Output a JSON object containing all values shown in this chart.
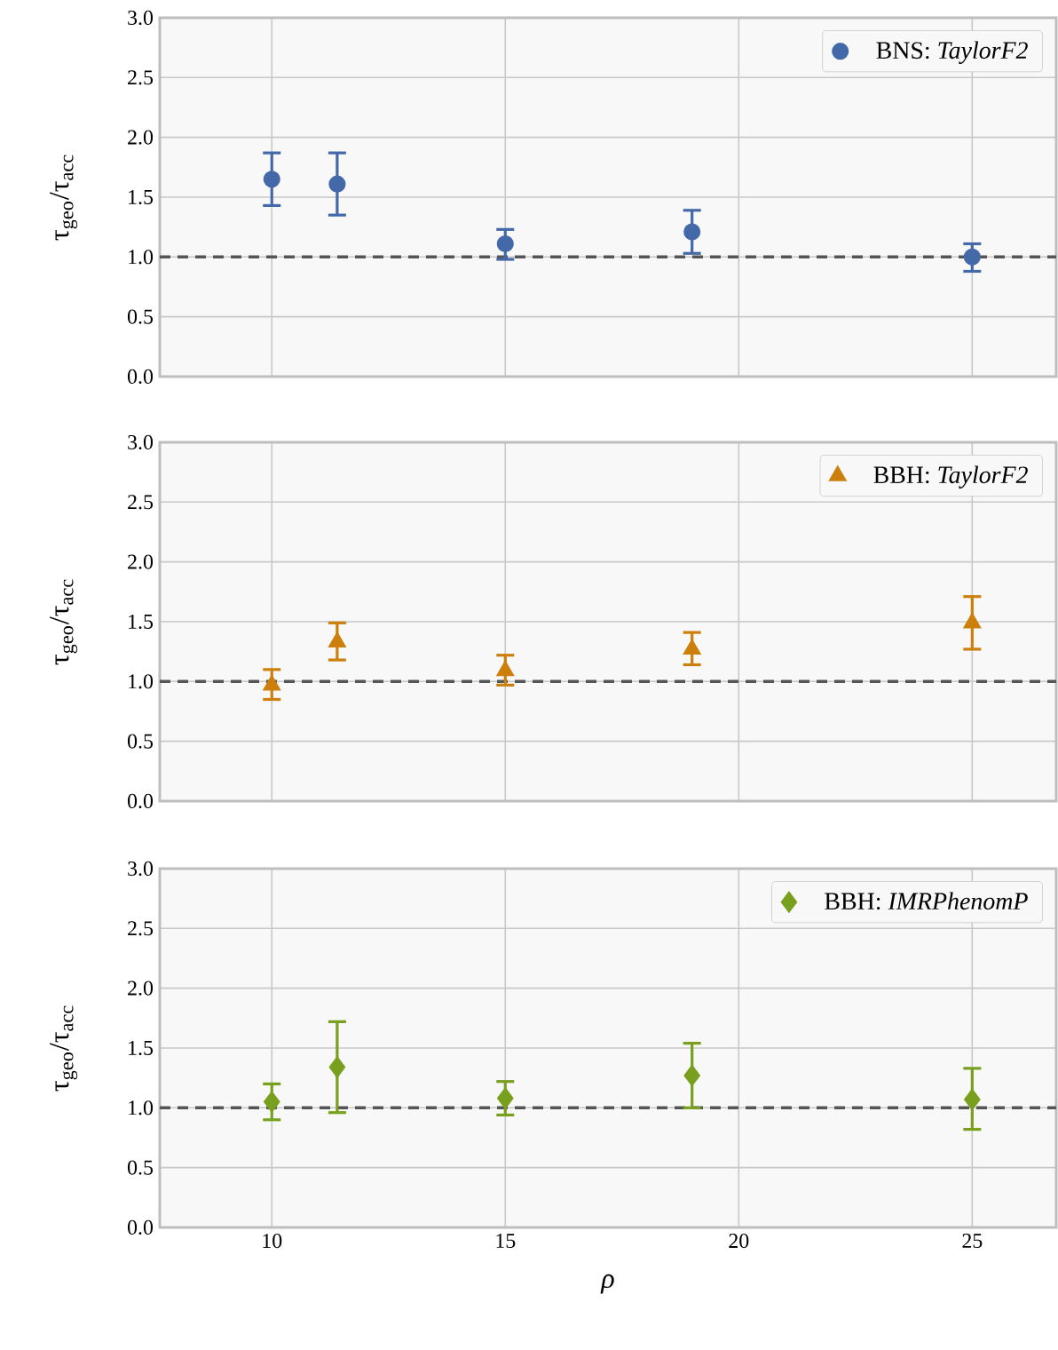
{
  "chart_data": [
    {
      "type": "scatter",
      "ylabel": "τ$_{geo}$/τ$_{acc}$",
      "x": [
        10,
        11.4,
        15,
        19,
        25
      ],
      "xlim": [
        7.6,
        26.8
      ],
      "xticks": [
        10,
        15,
        20,
        25
      ],
      "ylim": [
        0,
        3
      ],
      "yticks": [
        {
          "value": 0,
          "label": "0.0"
        },
        {
          "value": 0.5,
          "label": "0.5"
        },
        {
          "value": 1,
          "label": "1.0"
        },
        {
          "value": 1.5,
          "label": "1.5"
        },
        {
          "value": 2,
          "label": "2.0"
        },
        {
          "value": 2.5,
          "label": "2.5"
        },
        {
          "value": 3,
          "label": "3.0"
        }
      ],
      "tick_labels": "y",
      "grid": true,
      "legend": "top right",
      "marker": "circle",
      "series": [
        {
          "name": "BNS: *TaylorF2*",
          "color": "#4469a8",
          "values": [
            1.65,
            1.61,
            1.11,
            1.21,
            1.0
          ],
          "errors": [
            [
              1.43,
              1.87
            ],
            [
              1.35,
              1.87
            ],
            [
              0.98,
              1.23
            ],
            [
              1.03,
              1.39
            ],
            [
              0.88,
              1.11
            ]
          ]
        }
      ],
      "ref_lines": [
        {
          "axis": "y",
          "value": 1,
          "color": "#555555",
          "line_style": "dashed"
        }
      ]
    },
    {
      "type": "scatter",
      "ylabel": "τ$_{geo}$/τ$_{acc}$",
      "x": [
        10,
        11.4,
        15,
        19,
        25
      ],
      "xlim": [
        7.6,
        26.8
      ],
      "xticks": [
        10,
        15,
        20,
        25
      ],
      "ylim": [
        0,
        3
      ],
      "yticks": [
        {
          "value": 0,
          "label": "0.0"
        },
        {
          "value": 0.5,
          "label": "0.5"
        },
        {
          "value": 1,
          "label": "1.0"
        },
        {
          "value": 1.5,
          "label": "1.5"
        },
        {
          "value": 2,
          "label": "2.0"
        },
        {
          "value": 2.5,
          "label": "2.5"
        },
        {
          "value": 3,
          "label": "3.0"
        }
      ],
      "tick_labels": "y",
      "grid": true,
      "legend": "top right",
      "marker": "triangle",
      "series": [
        {
          "name": "BBH: *TaylorF2*",
          "color": "#cc7f0a",
          "values": [
            0.97,
            1.33,
            1.09,
            1.27,
            1.49
          ],
          "errors": [
            [
              0.85,
              1.1
            ],
            [
              1.18,
              1.49
            ],
            [
              0.97,
              1.22
            ],
            [
              1.14,
              1.41
            ],
            [
              1.27,
              1.71
            ]
          ]
        }
      ],
      "ref_lines": [
        {
          "axis": "y",
          "value": 1,
          "color": "#555555",
          "line_style": "dashed"
        }
      ]
    },
    {
      "type": "scatter",
      "xlabel": "ρ",
      "ylabel": "τ$_{geo}$/τ$_{acc}$",
      "x": [
        10,
        11.4,
        15,
        19,
        25
      ],
      "xlim": [
        7.6,
        26.8
      ],
      "xticks": [
        10,
        15,
        20,
        25
      ],
      "ylim": [
        0,
        3
      ],
      "yticks": [
        {
          "value": 0,
          "label": "0.0"
        },
        {
          "value": 0.5,
          "label": "0.5"
        },
        {
          "value": 1,
          "label": "1.0"
        },
        {
          "value": 1.5,
          "label": "1.5"
        },
        {
          "value": 2,
          "label": "2.0"
        },
        {
          "value": 2.5,
          "label": "2.5"
        },
        {
          "value": 3,
          "label": "3.0"
        }
      ],
      "grid": true,
      "legend": "top right",
      "marker": "diamond",
      "series": [
        {
          "name": "BBH: *IMRPhenomP*",
          "color": "#78a01e",
          "values": [
            1.05,
            1.34,
            1.08,
            1.27,
            1.07
          ],
          "errors": [
            [
              0.9,
              1.2
            ],
            [
              0.96,
              1.72
            ],
            [
              0.94,
              1.22
            ],
            [
              1.0,
              1.54
            ],
            [
              0.82,
              1.33
            ]
          ]
        }
      ],
      "ref_lines": [
        {
          "axis": "y",
          "value": 1,
          "color": "#555555",
          "line_style": "dashed"
        }
      ]
    }
  ]
}
